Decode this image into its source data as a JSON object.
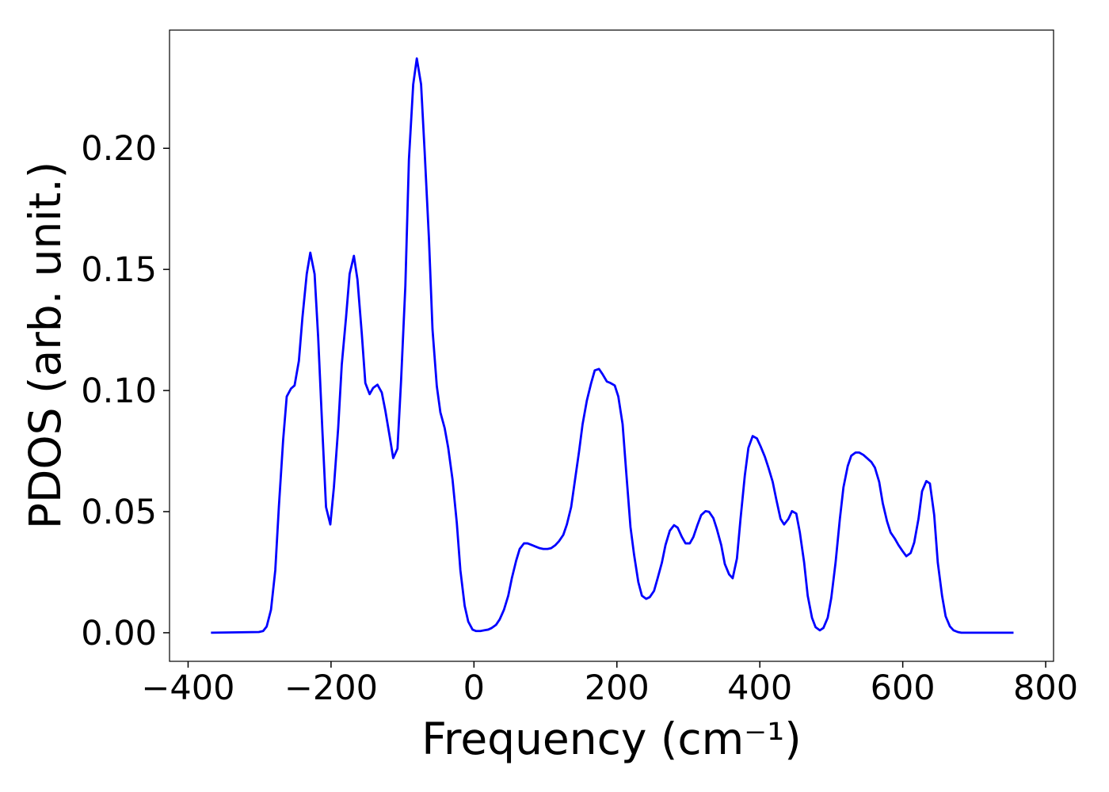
{
  "chart_data": {
    "type": "line",
    "xlabel": "Frequency (cm⁻¹)",
    "ylabel": "PDOS (arb. unit.)",
    "color": "#0000ff",
    "xlim": [
      -426,
      811
    ],
    "ylim": [
      -0.0118,
      0.2488
    ],
    "xticks": [
      {
        "value": -400,
        "label": "−400"
      },
      {
        "value": -200,
        "label": "−200"
      },
      0,
      200,
      400,
      600,
      800
    ],
    "yticks": [
      {
        "value": 0,
        "label": "0.00"
      },
      {
        "value": 0.05,
        "label": "0.05"
      },
      {
        "value": 0.1,
        "label": "0.10"
      },
      {
        "value": 0.15,
        "label": "0.15"
      },
      {
        "value": 0.2,
        "label": "0.20"
      }
    ],
    "x": [
      -368,
      -301,
      -295,
      -290,
      -284,
      -278,
      -273,
      -267,
      -262,
      -256,
      -251,
      -245,
      -240,
      -234,
      -229,
      -223,
      -218,
      -212,
      -207,
      -201,
      -196,
      -190,
      -185,
      -179,
      -174,
      -168,
      -163,
      -157,
      -152,
      -146,
      -141,
      -135,
      -129,
      -124,
      -118,
      -113,
      -107,
      -102,
      -96,
      -91,
      -85,
      -80,
      -74,
      -69,
      -63,
      -58,
      -52,
      -47,
      -41,
      -36,
      -30,
      -24,
      -19,
      -13,
      -8,
      -2,
      3,
      9,
      14,
      20,
      25,
      31,
      36,
      42,
      48,
      53,
      59,
      64,
      70,
      75,
      81,
      86,
      92,
      97,
      103,
      108,
      114,
      119,
      125,
      130,
      136,
      141,
      147,
      152,
      158,
      164,
      169,
      175,
      180,
      186,
      191,
      197,
      202,
      208,
      213,
      219,
      224,
      230,
      235,
      241,
      246,
      252,
      257,
      263,
      268,
      274,
      280,
      285,
      291,
      296,
      302,
      307,
      313,
      318,
      324,
      329,
      335,
      340,
      346,
      351,
      357,
      362,
      368,
      373,
      379,
      384,
      390,
      396,
      401,
      407,
      412,
      418,
      423,
      429,
      434,
      440,
      445,
      451,
      456,
      462,
      467,
      473,
      478,
      484,
      489,
      495,
      500,
      506,
      512,
      517,
      523,
      528,
      534,
      539,
      545,
      550,
      556,
      561,
      567,
      572,
      578,
      583,
      589,
      594,
      600,
      605,
      611,
      616,
      622,
      627,
      633,
      638,
      644,
      649,
      655,
      660,
      666,
      671,
      677,
      682,
      755
    ],
    "values": [
      0,
      0.0003,
      0.0007,
      0.0026,
      0.0095,
      0.0258,
      0.0519,
      0.0796,
      0.0975,
      0.1008,
      0.1021,
      0.1122,
      0.1302,
      0.1481,
      0.1569,
      0.1481,
      0.122,
      0.0828,
      0.0519,
      0.0447,
      0.06,
      0.0845,
      0.1106,
      0.1302,
      0.1481,
      0.1556,
      0.1458,
      0.1236,
      0.1031,
      0.0985,
      0.1011,
      0.1024,
      0.0992,
      0.0917,
      0.0812,
      0.0721,
      0.076,
      0.104,
      0.1432,
      0.1954,
      0.2264,
      0.2371,
      0.2264,
      0.1986,
      0.1628,
      0.1252,
      0.1018,
      0.091,
      0.0845,
      0.0763,
      0.0633,
      0.0453,
      0.0258,
      0.0111,
      0.0046,
      0.0013,
      0.0007,
      0.0007,
      0.001,
      0.0013,
      0.002,
      0.0033,
      0.0055,
      0.0095,
      0.0153,
      0.0225,
      0.0297,
      0.0346,
      0.0369,
      0.0369,
      0.0362,
      0.0356,
      0.0349,
      0.0346,
      0.0346,
      0.0349,
      0.0362,
      0.0378,
      0.0404,
      0.0447,
      0.0519,
      0.0623,
      0.0747,
      0.0861,
      0.0959,
      0.1031,
      0.1083,
      0.1089,
      0.1067,
      0.1037,
      0.1031,
      0.1021,
      0.0975,
      0.0861,
      0.0665,
      0.0437,
      0.0323,
      0.0209,
      0.0153,
      0.014,
      0.0147,
      0.0173,
      0.0225,
      0.029,
      0.0362,
      0.0421,
      0.0444,
      0.0434,
      0.0395,
      0.0369,
      0.0369,
      0.0395,
      0.0447,
      0.0486,
      0.0502,
      0.0499,
      0.0473,
      0.0427,
      0.0362,
      0.0284,
      0.0241,
      0.0225,
      0.0307,
      0.047,
      0.0649,
      0.0763,
      0.0812,
      0.0802,
      0.077,
      0.0727,
      0.0682,
      0.0623,
      0.0551,
      0.047,
      0.0447,
      0.047,
      0.0502,
      0.0492,
      0.0414,
      0.029,
      0.0153,
      0.0062,
      0.0023,
      0.001,
      0.002,
      0.0062,
      0.0144,
      0.029,
      0.047,
      0.06,
      0.0688,
      0.0731,
      0.0744,
      0.0744,
      0.0734,
      0.0721,
      0.0705,
      0.0682,
      0.0623,
      0.0535,
      0.046,
      0.0414,
      0.0388,
      0.0362,
      0.0336,
      0.0316,
      0.0329,
      0.0372,
      0.047,
      0.0584,
      0.0626,
      0.0616,
      0.0486,
      0.029,
      0.0153,
      0.0068,
      0.0026,
      0.001,
      0.0003,
      0,
      0
    ]
  }
}
